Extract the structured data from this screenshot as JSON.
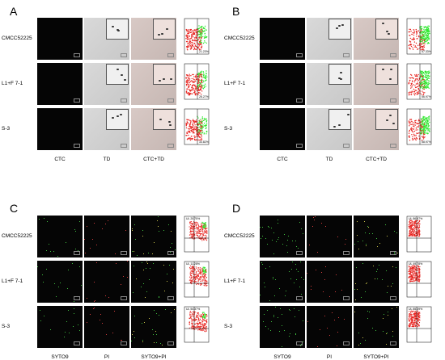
{
  "panels": {
    "A": {
      "letter": "A",
      "rows": [
        "CMCC52225",
        "L1+F 7-1",
        "S-3"
      ],
      "cols": [
        "CTC",
        "TD",
        "CTC+TD"
      ],
      "pct": [
        "21.23%",
        "26.27%",
        "33.82%"
      ]
    },
    "B": {
      "letter": "B",
      "rows": [
        "CMCC52225",
        "L1+F 7-1",
        "S-3"
      ],
      "cols": [
        "CTC",
        "TD",
        "CTC+TD"
      ],
      "pct": [
        "57.33%",
        "56.97%",
        "58.97%"
      ]
    },
    "C": {
      "letter": "C",
      "rows": [
        "CMCC52225",
        "L1+F 7-1",
        "S-3"
      ],
      "cols": [
        "SYTO9",
        "PI",
        "SYTO9+PI"
      ],
      "pct": [
        "UL 20.75%",
        "UL 11.28%",
        "UL 54.37%"
      ]
    },
    "D": {
      "letter": "D",
      "rows": [
        "CMCC52225",
        "L1+F 7-1",
        "S-3"
      ],
      "cols": [
        "SYTO9",
        "PI",
        "SYTO9+PI"
      ],
      "pct": [
        "UL 86.97%",
        "UL 49.78%",
        "UL 85.39%"
      ]
    }
  },
  "colors": {
    "red": "#e8231f",
    "green": "#2ee82e",
    "fluor_red": "#d23c3c",
    "fluor_green": "#3fbf3f"
  }
}
